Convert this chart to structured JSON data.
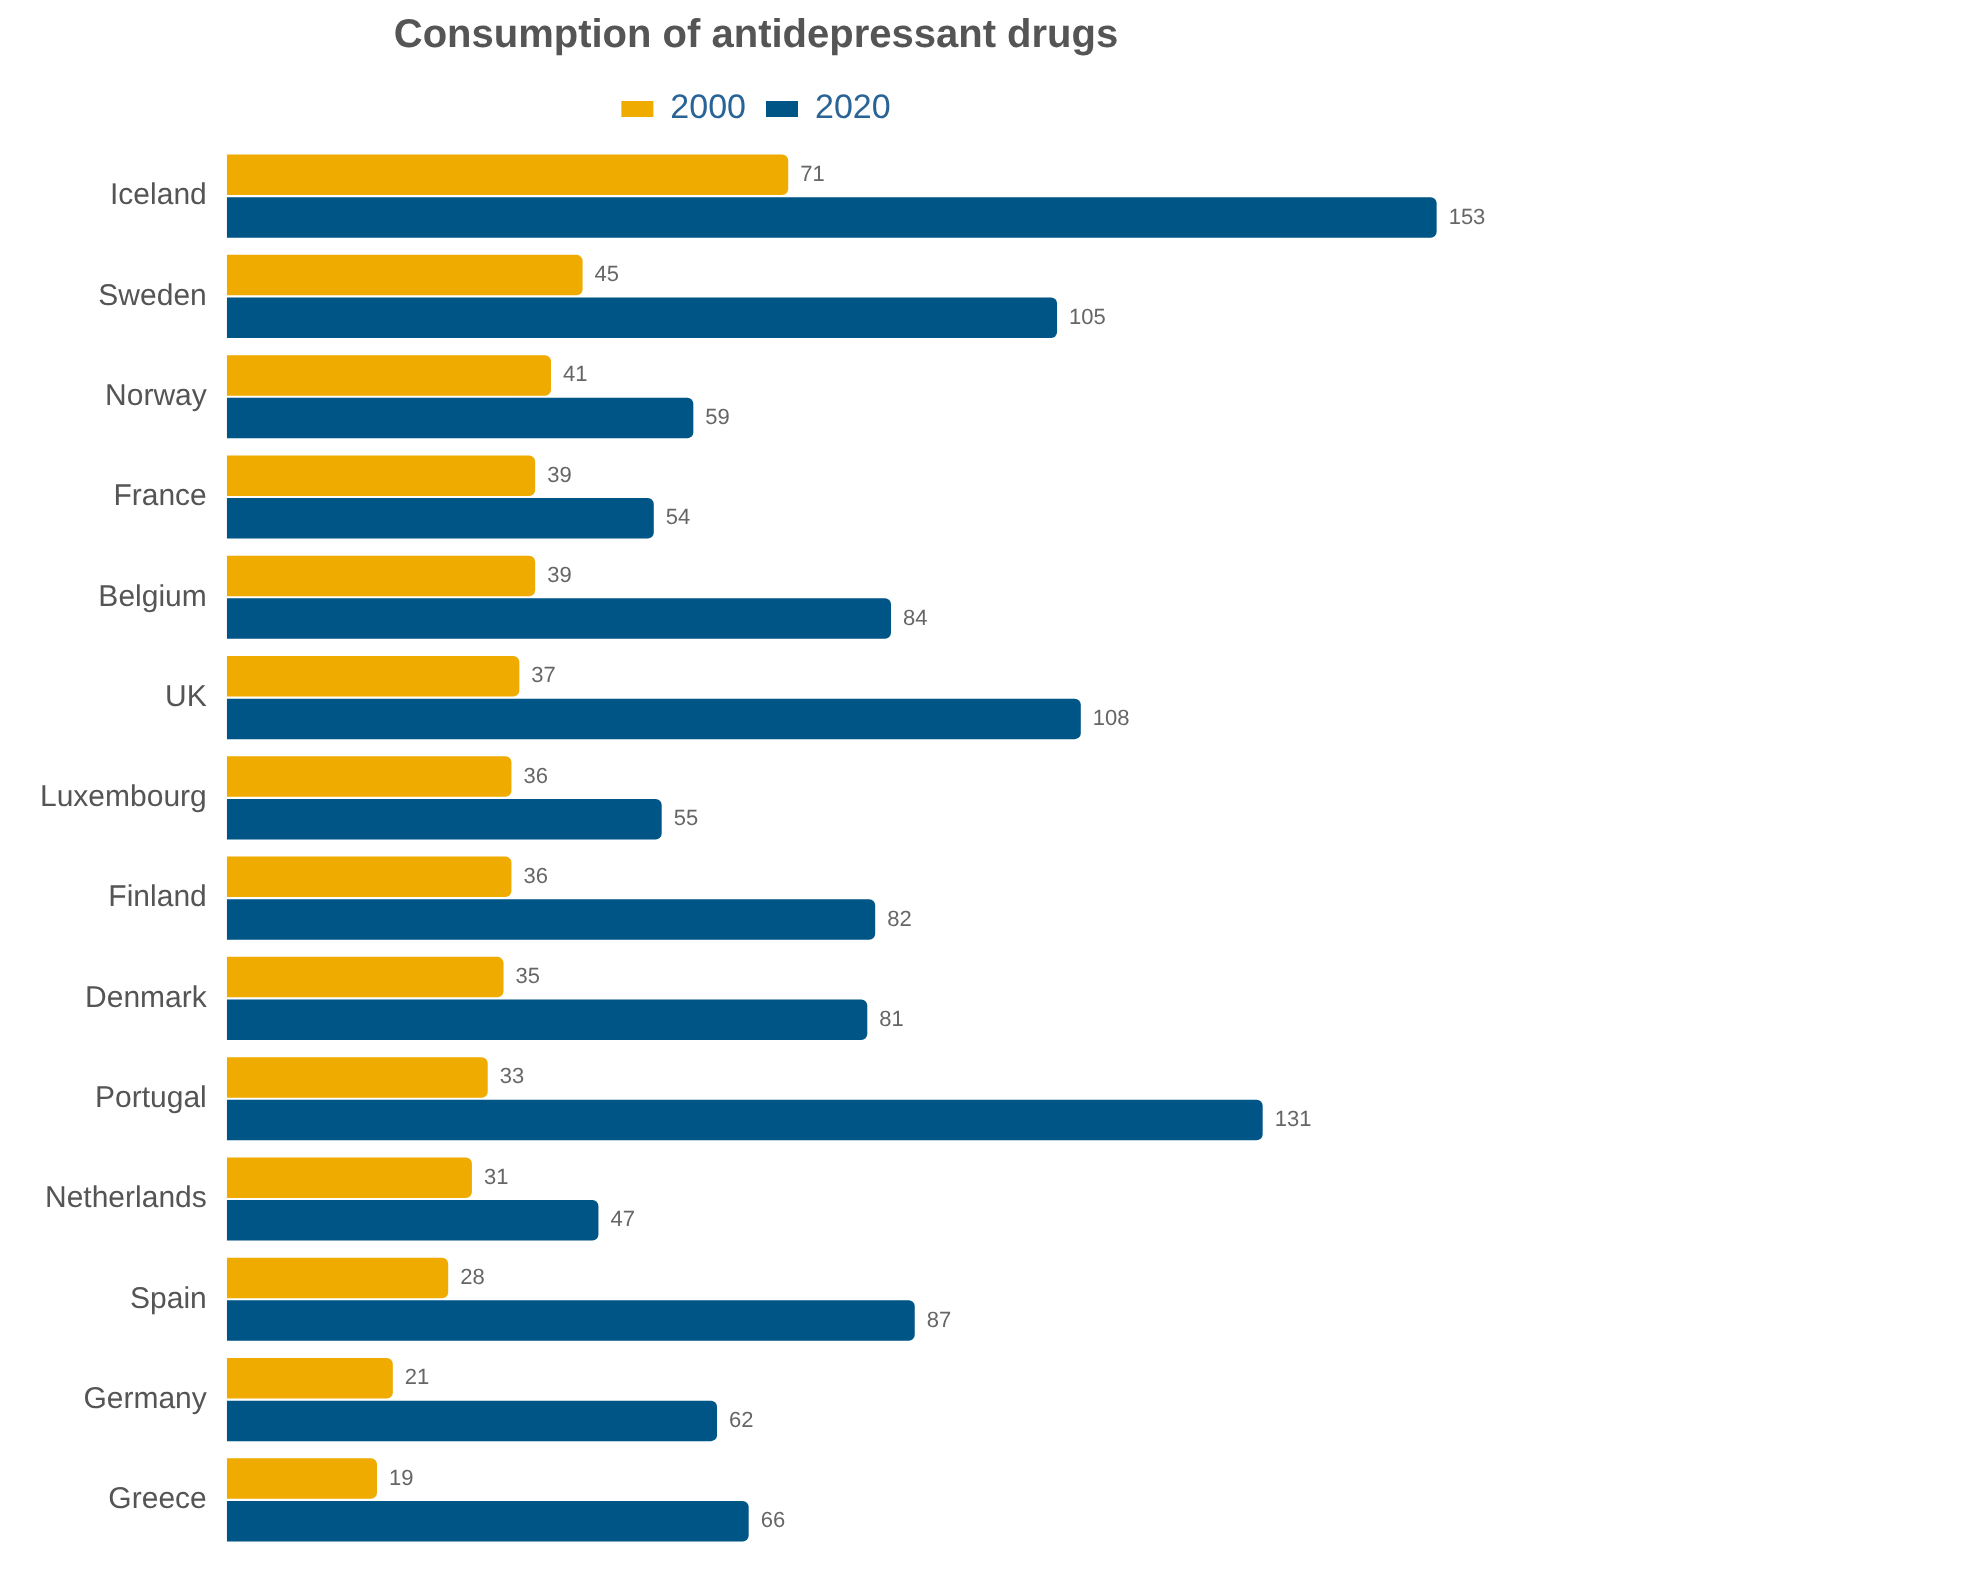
{
  "chart_data": {
    "type": "bar",
    "orientation": "horizontal",
    "title": "Consumption of antidepressant drugs",
    "categories": [
      "Iceland",
      "Sweden",
      "Norway",
      "France",
      "Belgium",
      "UK",
      "Luxembourg",
      "Finland",
      "Denmark",
      "Portugal",
      "Netherlands",
      "Spain",
      "Germany",
      "Greece"
    ],
    "series": [
      {
        "name": "2000",
        "color": "#f0ab00",
        "values": [
          71,
          45,
          41,
          39,
          39,
          37,
          36,
          36,
          35,
          33,
          31,
          28,
          21,
          19
        ]
      },
      {
        "name": "2020",
        "color": "#005587",
        "values": [
          153,
          105,
          59,
          54,
          84,
          108,
          55,
          82,
          81,
          131,
          47,
          87,
          62,
          66
        ]
      }
    ],
    "data_labels": true,
    "legend": "top"
  }
}
